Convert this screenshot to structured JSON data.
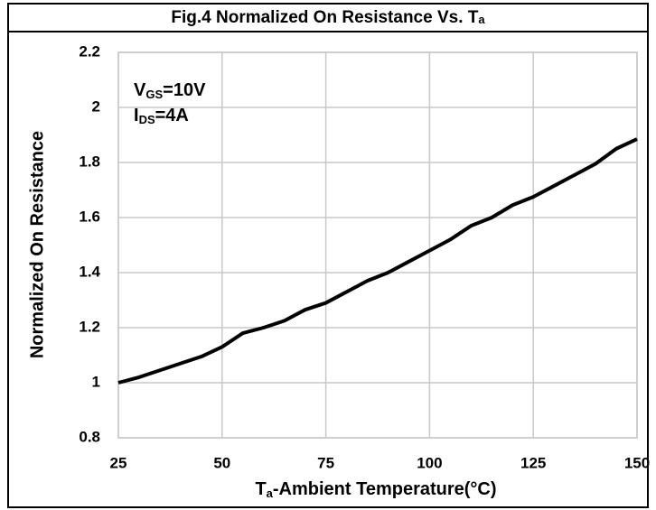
{
  "chart_data": {
    "type": "line",
    "title": {
      "text": "Fig.4    Normalized On Resistance Vs. T",
      "sub": "a"
    },
    "x_label": {
      "text": "T",
      "sub": "a",
      "rest": "-Ambient Temperature(°C)"
    },
    "y_label": "Normalized On Resistance",
    "annotations": [
      {
        "text": "V",
        "sub": "GS",
        "rest": "=10V"
      },
      {
        "text": "I",
        "sub": "DS",
        "rest": "=4A"
      }
    ],
    "x": [
      25,
      30,
      35,
      40,
      45,
      50,
      55,
      60,
      65,
      70,
      75,
      80,
      85,
      90,
      95,
      100,
      105,
      110,
      115,
      120,
      125,
      130,
      135,
      140,
      145,
      150
    ],
    "series": [
      {
        "name": "Normalized On Resistance",
        "color": "#000000",
        "values": [
          1.0,
          1.02,
          1.045,
          1.07,
          1.095,
          1.13,
          1.18,
          1.2,
          1.225,
          1.265,
          1.29,
          1.33,
          1.37,
          1.4,
          1.44,
          1.48,
          1.52,
          1.57,
          1.6,
          1.645,
          1.675,
          1.715,
          1.755,
          1.795,
          1.85,
          1.885
        ]
      }
    ],
    "xlim": [
      25,
      150
    ],
    "xticks": [
      25,
      50,
      75,
      100,
      125,
      150
    ],
    "ylim": [
      0.8,
      2.2
    ],
    "yticks": [
      0.8,
      1,
      1.2,
      1.4,
      1.6,
      1.8,
      2,
      2.2
    ],
    "grid": true
  }
}
